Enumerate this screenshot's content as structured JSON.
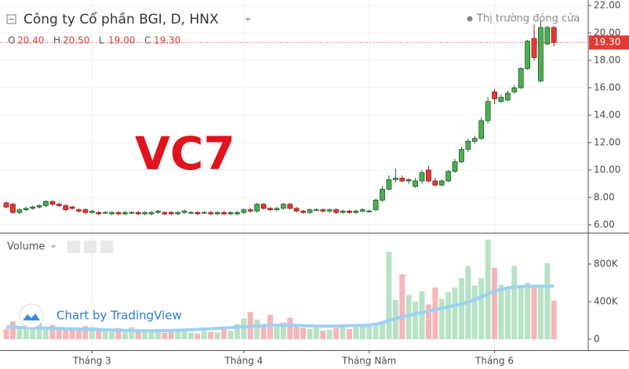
{
  "chart_data": [
    {
      "type": "candlestick",
      "title": "Công ty Cổ phần BGI, D, HNX",
      "status": "Thị trường đóng cửa",
      "annotation": "VC7",
      "legend": [
        {
          "key": "O",
          "label": "20.40"
        },
        {
          "key": "H",
          "label": "20.50"
        },
        {
          "key": "L",
          "label": "19.00"
        },
        {
          "key": "C",
          "label": "19.30"
        }
      ],
      "last_price": {
        "value": 19.3,
        "label": "19.30"
      },
      "up_color": "#4caf50",
      "down_color": "#e53935",
      "xlim": [
        -0.95,
        88.2
      ],
      "xticks": [
        {
          "value": 13,
          "label": "Tháng 3"
        },
        {
          "value": 36,
          "label": "Tháng 4"
        },
        {
          "value": 55,
          "label": "Tháng Năm"
        },
        {
          "value": 74,
          "label": "Tháng 6"
        }
      ],
      "ylim": [
        5.54,
        22.4
      ],
      "yticks": [
        {
          "value": 6,
          "label": "6.00"
        },
        {
          "value": 8,
          "label": "8.00"
        },
        {
          "value": 10,
          "label": "10.00"
        },
        {
          "value": 12,
          "label": "12.00"
        },
        {
          "value": 14,
          "label": "14.00"
        },
        {
          "value": 16,
          "label": "16.00"
        },
        {
          "value": 18,
          "label": "18.00"
        },
        {
          "value": 20,
          "label": "20.00"
        },
        {
          "value": 22,
          "label": "22.00"
        }
      ],
      "grid": true,
      "open": [
        7.6,
        7.5,
        6.9,
        7.1,
        7.2,
        7.3,
        7.4,
        7.7,
        7.5,
        7.4,
        7.3,
        7.1,
        7.1,
        6.9,
        6.9,
        6.9,
        6.8,
        6.9,
        6.8,
        6.9,
        6.9,
        6.8,
        6.8,
        6.9,
        6.9,
        6.9,
        6.8,
        6.9,
        6.9,
        6.9,
        6.9,
        6.9,
        6.8,
        6.9,
        6.8,
        6.8,
        6.9,
        7.1,
        7.0,
        7.5,
        7.2,
        7.1,
        7.2,
        7.5,
        7.2,
        7.0,
        6.9,
        7.1,
        7.1,
        7.0,
        7.1,
        6.9,
        7.0,
        6.9,
        7.0,
        7.0,
        7.1,
        7.8,
        8.6,
        9.3,
        9.4,
        9.2,
        8.8,
        9.2,
        10.0,
        9.2,
        8.9,
        9.2,
        9.9,
        10.6,
        11.5,
        12.1,
        12.3,
        13.6,
        15.7,
        15.0,
        15.1,
        15.7,
        16.0,
        17.4,
        19.6,
        16.5,
        19.2,
        20.4
      ],
      "high": [
        7.7,
        7.6,
        7.2,
        7.3,
        7.4,
        7.5,
        7.8,
        7.8,
        7.6,
        7.5,
        7.4,
        7.2,
        7.2,
        7.1,
        7.0,
        7.0,
        7.0,
        7.0,
        7.0,
        7.0,
        7.0,
        7.0,
        7.0,
        7.1,
        7.0,
        7.0,
        7.0,
        7.1,
        7.0,
        7.0,
        7.0,
        7.0,
        7.0,
        7.0,
        7.0,
        7.0,
        7.2,
        7.2,
        7.6,
        7.6,
        7.3,
        7.3,
        7.6,
        7.6,
        7.3,
        7.1,
        7.2,
        7.2,
        7.2,
        7.2,
        7.2,
        7.1,
        7.1,
        7.1,
        7.2,
        7.1,
        7.9,
        8.8,
        9.6,
        10.1,
        9.6,
        9.4,
        9.4,
        10.0,
        10.3,
        9.4,
        9.3,
        10.0,
        10.8,
        11.7,
        12.3,
        12.5,
        13.8,
        15.3,
        15.9,
        15.5,
        15.8,
        16.2,
        17.5,
        19.5,
        20.6,
        20.9,
        20.5,
        20.5
      ],
      "low": [
        7.2,
        6.8,
        6.8,
        7.0,
        7.1,
        7.2,
        7.3,
        7.4,
        7.3,
        7.0,
        7.1,
        6.9,
        6.8,
        6.8,
        6.7,
        6.8,
        6.7,
        6.7,
        6.7,
        6.8,
        6.7,
        6.7,
        6.7,
        6.8,
        6.7,
        6.7,
        6.7,
        6.8,
        6.8,
        6.7,
        6.8,
        6.7,
        6.7,
        6.7,
        6.7,
        6.7,
        6.8,
        6.9,
        6.9,
        7.1,
        7.0,
        7.0,
        7.1,
        7.1,
        6.9,
        6.8,
        6.8,
        7.0,
        6.9,
        6.9,
        6.8,
        6.8,
        6.8,
        6.8,
        6.9,
        6.9,
        7.0,
        7.7,
        8.5,
        9.1,
        9.1,
        9.0,
        8.7,
        9.0,
        9.1,
        8.8,
        8.8,
        9.1,
        9.8,
        10.5,
        11.3,
        11.9,
        12.2,
        13.4,
        14.8,
        14.9,
        15.0,
        15.6,
        15.9,
        17.3,
        18.0,
        16.4,
        19.1,
        19.0
      ],
      "close": [
        7.3,
        6.9,
        7.1,
        7.2,
        7.3,
        7.4,
        7.7,
        7.5,
        7.4,
        7.1,
        7.2,
        7.0,
        6.9,
        7.0,
        6.8,
        6.9,
        6.9,
        6.8,
        6.9,
        6.9,
        6.8,
        6.9,
        6.9,
        7.0,
        6.8,
        6.8,
        6.9,
        7.0,
        6.9,
        6.8,
        6.9,
        6.8,
        6.9,
        6.8,
        6.9,
        6.9,
        7.1,
        7.0,
        7.5,
        7.2,
        7.1,
        7.2,
        7.5,
        7.2,
        7.0,
        6.9,
        7.1,
        7.1,
        7.0,
        7.1,
        6.9,
        7.0,
        6.9,
        7.0,
        7.1,
        7.0,
        7.8,
        8.6,
        9.3,
        9.4,
        9.2,
        9.3,
        9.2,
        9.8,
        9.2,
        8.9,
        9.2,
        9.9,
        10.6,
        11.5,
        12.1,
        12.3,
        13.6,
        15.0,
        15.2,
        15.3,
        15.6,
        16.0,
        17.4,
        19.4,
        18.2,
        20.4,
        20.4,
        19.3
      ]
    },
    {
      "type": "bar",
      "title": "Volume",
      "up_color": "#b8e2c6",
      "down_color": "#f4b6b9",
      "xlim": [
        -0.95,
        88.2
      ],
      "ylim": [
        -100000,
        1108333
      ],
      "yticks": [
        0,
        {
          "value": 400000,
          "label": "400K"
        },
        {
          "value": 800000,
          "label": "800K"
        }
      ],
      "values": [
        110000,
        190000,
        140000,
        150000,
        160000,
        180000,
        120000,
        150000,
        130000,
        110000,
        120000,
        100000,
        140000,
        130000,
        120000,
        90000,
        80000,
        120000,
        100000,
        130000,
        90000,
        100000,
        80000,
        110000,
        70000,
        90000,
        80000,
        100000,
        70000,
        60000,
        90000,
        80000,
        70000,
        120000,
        90000,
        160000,
        220000,
        290000,
        210000,
        160000,
        260000,
        140000,
        180000,
        230000,
        130000,
        120000,
        110000,
        150000,
        90000,
        100000,
        120000,
        130000,
        110000,
        140000,
        150000,
        160000,
        160000,
        190000,
        930000,
        420000,
        690000,
        470000,
        400000,
        510000,
        370000,
        550000,
        430000,
        500000,
        550000,
        650000,
        780000,
        570000,
        650000,
        1060000,
        760000,
        580000,
        530000,
        780000,
        570000,
        600000,
        560000,
        550000,
        810000,
        410000
      ],
      "ma": {
        "color": "#9ed1f2",
        "values": [
          130000,
          128000,
          126000,
          124000,
          122000,
          120000,
          118000,
          116000,
          114000,
          112000,
          110000,
          108000,
          106000,
          104000,
          102000,
          100000,
          98000,
          96000,
          94000,
          92000,
          90000,
          90000,
          90000,
          90000,
          92000,
          94000,
          96000,
          98000,
          100000,
          104000,
          108000,
          112000,
          116000,
          120000,
          124000,
          128000,
          132000,
          136000,
          140000,
          144000,
          148000,
          150000,
          150000,
          148000,
          146000,
          144000,
          142000,
          140000,
          140000,
          140000,
          140000,
          142000,
          144000,
          146000,
          148000,
          150000,
          160000,
          175000,
          200000,
          220000,
          240000,
          255000,
          270000,
          285000,
          300000,
          315000,
          330000,
          345000,
          360000,
          375000,
          395000,
          420000,
          450000,
          480000,
          510000,
          530000,
          545000,
          555000,
          560000,
          560000,
          565000,
          565000,
          565000,
          565000
        ]
      }
    }
  ],
  "watermark": "Chart by TradingView"
}
